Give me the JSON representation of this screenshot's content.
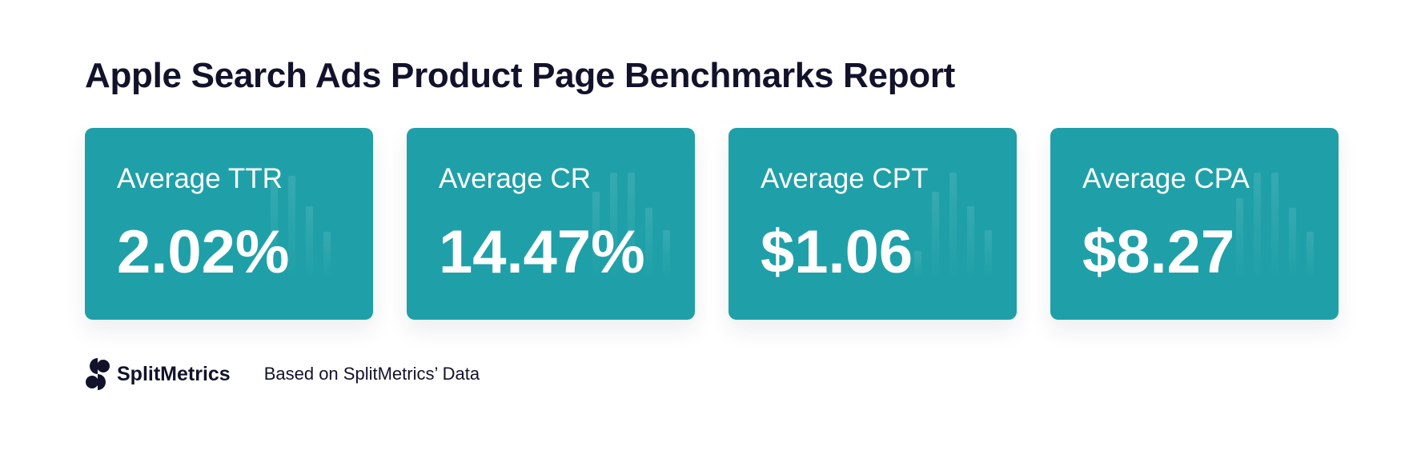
{
  "header": {
    "title": "Apple Search Ads Product Page Benchmarks Report"
  },
  "cards": [
    {
      "label": "Average TTR",
      "value": "2.02%"
    },
    {
      "label": "Average CR",
      "value": "14.47%"
    },
    {
      "label": "Average CPT",
      "value": "$1.06"
    },
    {
      "label": "Average CPA",
      "value": "$8.27"
    }
  ],
  "footer": {
    "brand": "SplitMetrics",
    "source": "Based on SplitMetrics’ Data"
  },
  "colors": {
    "card_background": "#1fa0a8",
    "text_dark": "#12122b",
    "text_light": "#ffffff"
  },
  "icons": {
    "logo": "splitmetrics-logo-icon",
    "card_decoration": "bar-chart-decoration-icon"
  }
}
